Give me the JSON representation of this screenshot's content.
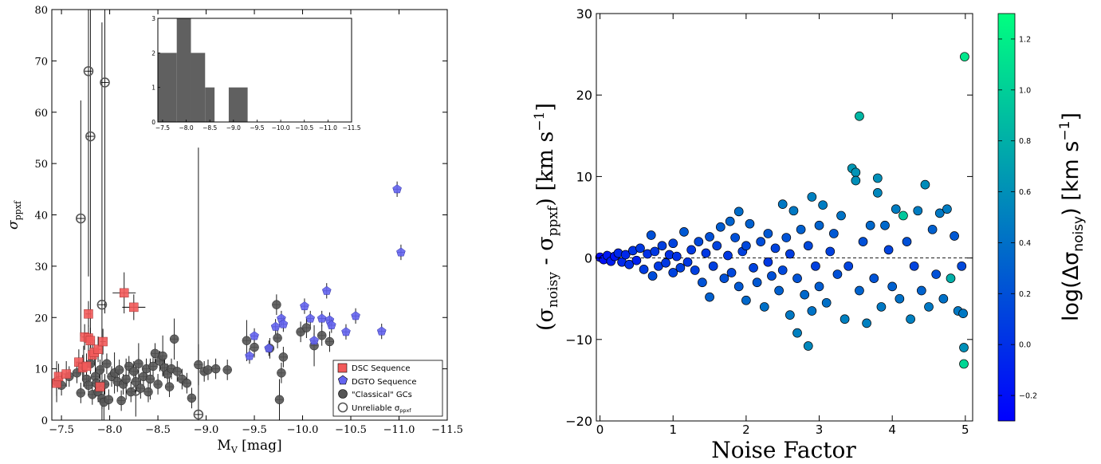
{
  "colors": {
    "dsc": "#f25a5a",
    "dgto": "#6464f0",
    "classical": "#555555",
    "hist": "#606060",
    "cmap_low": "#0000ff",
    "cmap_high": "#00ff80"
  },
  "chart_data": [
    {
      "type": "scatter",
      "xlabel": "M",
      "xlabel_sub": "V",
      "xlabel_unit": " [mag]",
      "ylabel": "σ",
      "ylabel_sub": "ppxf",
      "xlim": [
        -7.4,
        -11.5
      ],
      "ylim": [
        0,
        80
      ],
      "xticks": [
        -7.5,
        -8.0,
        -8.5,
        -9.0,
        -9.5,
        -10.0,
        -10.5,
        -11.0,
        -11.5
      ],
      "xtick_labels": [
        "−7.5",
        "−8.0",
        "−8.5",
        "−9.0",
        "−9.5",
        "−10.0",
        "−10.5",
        "−11.0",
        "−11.5"
      ],
      "yticks": [
        0,
        10,
        20,
        30,
        40,
        50,
        60,
        70,
        80
      ],
      "ytick_labels": [
        "0",
        "10",
        "20",
        "30",
        "40",
        "50",
        "60",
        "70",
        "80"
      ],
      "legend_position": "bottom-right",
      "series": [
        {
          "name": "DSC Sequence",
          "marker": "square",
          "points": [
            [
              -7.45,
              7.2
            ],
            [
              -7.47,
              8.5
            ],
            [
              -7.55,
              9.0
            ],
            [
              -7.68,
              11.3
            ],
            [
              -7.72,
              10.2
            ],
            [
              -7.74,
              16.2
            ],
            [
              -7.76,
              10.5
            ],
            [
              -7.78,
              20.7
            ],
            [
              -7.78,
              16.0
            ],
            [
              -7.8,
              15.5
            ],
            [
              -7.82,
              12.7
            ],
            [
              -7.84,
              13.2
            ],
            [
              -7.88,
              13.8
            ],
            [
              -7.9,
              6.5
            ],
            [
              -7.93,
              15.3
            ],
            [
              -8.15,
              24.8
            ],
            [
              -8.25,
              22.0
            ]
          ]
        },
        {
          "name": "DGTO Sequence",
          "marker": "pentagon",
          "points": [
            [
              -9.45,
              12.5
            ],
            [
              -9.5,
              16.4
            ],
            [
              -9.65,
              14.0
            ],
            [
              -9.72,
              18.2
            ],
            [
              -9.78,
              19.8
            ],
            [
              -9.8,
              18.7
            ],
            [
              -10.02,
              22.2
            ],
            [
              -10.08,
              19.8
            ],
            [
              -10.12,
              15.5
            ],
            [
              -10.2,
              19.8
            ],
            [
              -10.25,
              25.2
            ],
            [
              -10.28,
              19.5
            ],
            [
              -10.3,
              18.5
            ],
            [
              -10.45,
              17.2
            ],
            [
              -10.55,
              20.3
            ],
            [
              -10.82,
              17.3
            ],
            [
              -10.98,
              45.0
            ],
            [
              -11.02,
              32.7
            ]
          ]
        },
        {
          "name": "\"Classical\" GCs",
          "marker": "circle",
          "points": [
            [
              -7.45,
              7.5
            ],
            [
              -7.5,
              6.8
            ],
            [
              -7.58,
              8.5
            ],
            [
              -7.66,
              9.2
            ],
            [
              -7.7,
              5.3
            ],
            [
              -7.73,
              10.5
            ],
            [
              -7.76,
              8.0
            ],
            [
              -7.78,
              6.8
            ],
            [
              -7.8,
              11.0
            ],
            [
              -7.82,
              5.0
            ],
            [
              -7.85,
              8.5
            ],
            [
              -7.86,
              7.2
            ],
            [
              -7.88,
              5.5
            ],
            [
              -7.9,
              9.8
            ],
            [
              -7.92,
              4.2
            ],
            [
              -7.94,
              3.5
            ],
            [
              -7.95,
              7.0
            ],
            [
              -7.97,
              11.0
            ],
            [
              -7.99,
              4.0
            ],
            [
              -8.02,
              8.5
            ],
            [
              -8.05,
              9.2
            ],
            [
              -8.08,
              7.5
            ],
            [
              -8.1,
              9.8
            ],
            [
              -8.12,
              3.8
            ],
            [
              -8.14,
              7.0
            ],
            [
              -8.17,
              8.0
            ],
            [
              -8.2,
              10.5
            ],
            [
              -8.22,
              5.5
            ],
            [
              -8.25,
              9.5
            ],
            [
              -8.27,
              7.5
            ],
            [
              -8.3,
              11.0
            ],
            [
              -8.32,
              6.2
            ],
            [
              -8.35,
              8.5
            ],
            [
              -8.38,
              10.0
            ],
            [
              -8.4,
              5.5
            ],
            [
              -8.42,
              8.0
            ],
            [
              -8.45,
              10.5
            ],
            [
              -8.47,
              13.0
            ],
            [
              -8.5,
              7.0
            ],
            [
              -8.52,
              11.5
            ],
            [
              -8.55,
              12.5
            ],
            [
              -8.57,
              10.2
            ],
            [
              -8.6,
              9.0
            ],
            [
              -8.62,
              6.5
            ],
            [
              -8.64,
              10.0
            ],
            [
              -8.67,
              15.8
            ],
            [
              -8.7,
              9.5
            ],
            [
              -8.75,
              8.0
            ],
            [
              -8.8,
              7.2
            ],
            [
              -8.85,
              4.3
            ],
            [
              -8.92,
              10.8
            ],
            [
              -8.98,
              9.5
            ],
            [
              -9.02,
              9.8
            ],
            [
              -9.1,
              10.0
            ],
            [
              -9.22,
              9.8
            ],
            [
              -9.42,
              15.5
            ],
            [
              -9.5,
              14.2
            ],
            [
              -9.66,
              14.0
            ],
            [
              -9.73,
              22.5
            ],
            [
              -9.74,
              16.0
            ],
            [
              -9.76,
              4.0
            ],
            [
              -9.78,
              9.2
            ],
            [
              -9.8,
              12.3
            ],
            [
              -9.98,
              17.2
            ],
            [
              -10.04,
              18.0
            ],
            [
              -10.12,
              14.5
            ],
            [
              -10.2,
              16.5
            ],
            [
              -10.28,
              15.3
            ]
          ]
        },
        {
          "name": "Unreliable σ",
          "name_sub": "ppxf",
          "marker": "open-circle",
          "points": [
            [
              -7.7,
              39.3
            ],
            [
              -7.78,
              68.0
            ],
            [
              -7.8,
              55.3
            ],
            [
              -7.92,
              22.5
            ],
            [
              -7.95,
              65.8
            ],
            [
              -8.27,
              5.7
            ],
            [
              -8.92,
              1.1
            ]
          ]
        }
      ],
      "inset_histogram": {
        "xlim": [
          -7.4,
          -11.5
        ],
        "ylim": [
          0,
          3
        ],
        "xticks": [
          -7.5,
          -8.0,
          -8.5,
          -9.0,
          -9.5,
          -10.0,
          -10.5,
          -11.0,
          -11.5
        ],
        "xtick_labels": [
          "−7.5",
          "−8.0",
          "−8.5",
          "−9.0",
          "−9.5",
          "−10.0",
          "−10.5",
          "−11.0",
          "−11.5"
        ],
        "yticks": [
          0,
          1,
          2,
          3
        ],
        "ytick_labels": [
          "0",
          "1",
          "2",
          "3"
        ],
        "bins": [
          [
            -7.4,
            -7.8,
            2
          ],
          [
            -7.8,
            -8.1,
            3
          ],
          [
            -8.1,
            -8.4,
            2
          ],
          [
            -8.4,
            -8.6,
            1
          ],
          [
            -8.6,
            -8.9,
            0
          ],
          [
            -8.9,
            -9.3,
            1
          ]
        ]
      }
    },
    {
      "type": "scatter",
      "xlabel": "Noise Factor",
      "ylabel": "(σ",
      "ylabel_sub1": "noisy",
      "ylabel_mid": " - σ",
      "ylabel_sub2": "ppxf",
      "ylabel_unit": ") [km s",
      "ylabel_sup": "−1",
      "ylabel_end": "]",
      "xlim": [
        -0.05,
        5.1
      ],
      "ylim": [
        -20,
        30
      ],
      "xticks": [
        0,
        1,
        2,
        3,
        4,
        5
      ],
      "xtick_labels": [
        "0",
        "1",
        "2",
        "3",
        "4",
        "5"
      ],
      "yticks": [
        -20,
        -10,
        0,
        10,
        20,
        30
      ],
      "ytick_labels": [
        "−20",
        "−10",
        "0",
        "10",
        "20",
        "30"
      ],
      "zero_line": true,
      "colorbar": {
        "label": "log(Δσ",
        "label_sub": "noisy",
        "label_unit": ") [km s",
        "label_sup": "−1",
        "label_end": "]",
        "range": [
          -0.3,
          1.3
        ],
        "ticks": [
          -0.2,
          0.0,
          0.2,
          0.4,
          0.6,
          0.8,
          1.0,
          1.2
        ],
        "tick_labels": [
          "−0.2",
          "0.0",
          "0.2",
          "0.4",
          "0.6",
          "0.8",
          "1.0",
          "1.2"
        ]
      },
      "points": [
        [
          0.0,
          0.1,
          -0.25
        ],
        [
          0.05,
          -0.2,
          -0.2
        ],
        [
          0.1,
          0.3,
          -0.15
        ],
        [
          0.15,
          -0.4,
          -0.12
        ],
        [
          0.2,
          0.2,
          -0.18
        ],
        [
          0.25,
          0.6,
          -0.05
        ],
        [
          0.3,
          -0.5,
          -0.05
        ],
        [
          0.35,
          0.4,
          -0.05
        ],
        [
          0.4,
          -0.8,
          0.0
        ],
        [
          0.45,
          0.9,
          0.02
        ],
        [
          0.5,
          -0.3,
          -0.1
        ],
        [
          0.55,
          1.2,
          0.05
        ],
        [
          0.6,
          -1.4,
          0.08
        ],
        [
          0.65,
          0.5,
          0.0
        ],
        [
          0.7,
          2.8,
          0.2
        ],
        [
          0.72,
          -2.2,
          0.18
        ],
        [
          0.75,
          0.8,
          0.05
        ],
        [
          0.8,
          -1.0,
          0.05
        ],
        [
          0.85,
          1.5,
          0.1
        ],
        [
          0.9,
          -0.6,
          0.05
        ],
        [
          0.95,
          0.4,
          0.0
        ],
        [
          1.0,
          -1.8,
          0.12
        ],
        [
          1.0,
          1.8,
          0.12
        ],
        [
          1.05,
          0.2,
          0.0
        ],
        [
          1.1,
          -1.2,
          0.1
        ],
        [
          1.15,
          3.2,
          0.25
        ],
        [
          1.2,
          -0.5,
          0.05
        ],
        [
          1.25,
          1.0,
          0.05
        ],
        [
          1.3,
          -1.5,
          0.1
        ],
        [
          1.35,
          2.0,
          0.15
        ],
        [
          1.4,
          -3.0,
          0.22
        ],
        [
          1.45,
          0.6,
          0.05
        ],
        [
          1.5,
          -4.8,
          0.3
        ],
        [
          1.5,
          2.6,
          0.2
        ],
        [
          1.55,
          -1.0,
          0.1
        ],
        [
          1.6,
          1.5,
          0.12
        ],
        [
          1.65,
          3.8,
          0.28
        ],
        [
          1.7,
          -2.5,
          0.2
        ],
        [
          1.75,
          0.3,
          0.05
        ],
        [
          1.78,
          4.5,
          0.32
        ],
        [
          1.8,
          -1.8,
          0.15
        ],
        [
          1.85,
          2.5,
          0.2
        ],
        [
          1.9,
          5.7,
          0.38
        ],
        [
          1.9,
          -3.5,
          0.25
        ],
        [
          1.95,
          0.8,
          0.1
        ],
        [
          2.0,
          -5.2,
          0.35
        ],
        [
          2.0,
          1.5,
          0.15
        ],
        [
          2.05,
          4.2,
          0.3
        ],
        [
          2.1,
          -1.2,
          0.12
        ],
        [
          2.15,
          -3.0,
          0.25
        ],
        [
          2.2,
          2.0,
          0.18
        ],
        [
          2.25,
          -6.0,
          0.4
        ],
        [
          2.3,
          3.0,
          0.25
        ],
        [
          2.3,
          -0.5,
          0.05
        ],
        [
          2.35,
          -2.2,
          0.2
        ],
        [
          2.4,
          1.2,
          0.12
        ],
        [
          2.45,
          -4.0,
          0.3
        ],
        [
          2.5,
          6.6,
          0.45
        ],
        [
          2.5,
          -1.5,
          0.15
        ],
        [
          2.55,
          2.5,
          0.22
        ],
        [
          2.6,
          -7.0,
          0.45
        ],
        [
          2.6,
          0.5,
          0.08
        ],
        [
          2.65,
          5.8,
          0.45
        ],
        [
          2.7,
          -9.2,
          0.5
        ],
        [
          2.7,
          -2.5,
          0.22
        ],
        [
          2.75,
          3.5,
          0.3
        ],
        [
          2.8,
          -4.5,
          0.35
        ],
        [
          2.85,
          -10.8,
          0.55
        ],
        [
          2.85,
          1.5,
          0.15
        ],
        [
          2.9,
          7.5,
          0.5
        ],
        [
          2.9,
          -6.5,
          0.42
        ],
        [
          2.95,
          -1.0,
          0.1
        ],
        [
          3.0,
          4.0,
          0.32
        ],
        [
          3.0,
          -3.5,
          0.28
        ],
        [
          3.05,
          6.5,
          0.48
        ],
        [
          3.1,
          -5.5,
          0.4
        ],
        [
          3.15,
          0.8,
          0.1
        ],
        [
          3.2,
          3.0,
          0.25
        ],
        [
          3.25,
          -2.0,
          0.2
        ],
        [
          3.3,
          5.2,
          0.42
        ],
        [
          3.35,
          -7.5,
          0.5
        ],
        [
          3.4,
          -1.0,
          0.12
        ],
        [
          3.45,
          11.0,
          0.65
        ],
        [
          3.5,
          10.5,
          0.62
        ],
        [
          3.5,
          9.5,
          0.6
        ],
        [
          3.55,
          17.4,
          0.85
        ],
        [
          3.55,
          -4.0,
          0.32
        ],
        [
          3.6,
          2.0,
          0.2
        ],
        [
          3.65,
          -8.0,
          0.5
        ],
        [
          3.7,
          4.0,
          0.35
        ],
        [
          3.75,
          -2.5,
          0.22
        ],
        [
          3.8,
          9.8,
          0.6
        ],
        [
          3.8,
          8.0,
          0.55
        ],
        [
          3.85,
          -6.0,
          0.45
        ],
        [
          3.9,
          4.0,
          0.35
        ],
        [
          3.95,
          1.0,
          0.12
        ],
        [
          4.0,
          -3.5,
          0.3
        ],
        [
          4.05,
          6.0,
          0.48
        ],
        [
          4.1,
          -5.0,
          0.4
        ],
        [
          4.15,
          5.2,
          0.95
        ],
        [
          4.2,
          2.0,
          0.2
        ],
        [
          4.25,
          -7.5,
          0.5
        ],
        [
          4.3,
          -1.0,
          0.12
        ],
        [
          4.35,
          5.8,
          0.48
        ],
        [
          4.4,
          -4.0,
          0.32
        ],
        [
          4.45,
          9.0,
          0.58
        ],
        [
          4.5,
          -6.0,
          0.45
        ],
        [
          4.55,
          3.5,
          0.3
        ],
        [
          4.6,
          -2.0,
          0.2
        ],
        [
          4.65,
          5.5,
          0.45
        ],
        [
          4.7,
          -5.0,
          0.4
        ],
        [
          4.75,
          6.0,
          0.48
        ],
        [
          4.8,
          -2.5,
          0.8
        ],
        [
          4.85,
          2.7,
          0.25
        ],
        [
          4.9,
          -6.5,
          0.45
        ],
        [
          4.95,
          -1.0,
          0.15
        ],
        [
          4.97,
          -6.8,
          0.45
        ],
        [
          4.98,
          -11.0,
          0.6
        ],
        [
          4.98,
          -13.0,
          1.05
        ],
        [
          4.99,
          24.7,
          1.15
        ]
      ]
    }
  ]
}
